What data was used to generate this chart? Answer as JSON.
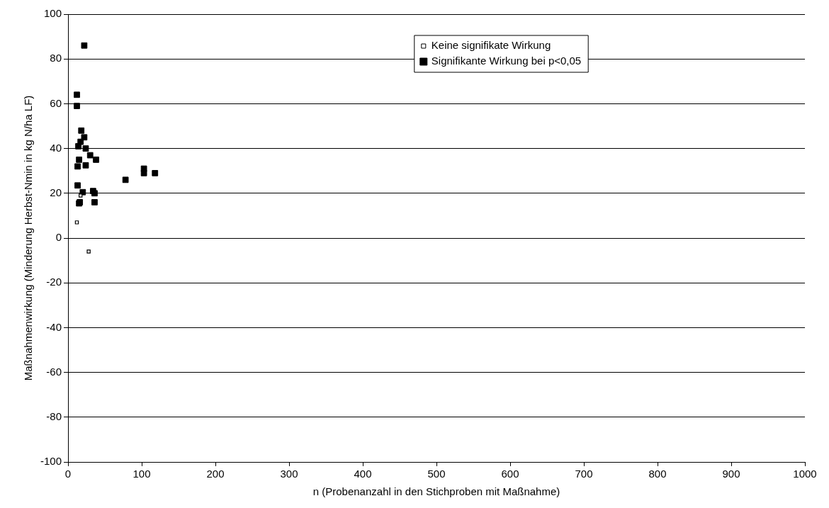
{
  "chart_data": {
    "type": "scatter",
    "xlabel": "n (Probenanzahl in den Stichproben mit Maßnahme)",
    "ylabel": "Maßnahmenwirkung (Minderung Herbst-Nmin in kg N/ha LF)",
    "xlim": [
      0,
      1000
    ],
    "xticks": [
      0,
      100,
      200,
      300,
      400,
      500,
      600,
      700,
      800,
      900,
      1000
    ],
    "ylim": [
      -100,
      100
    ],
    "yticks": [
      -100,
      -80,
      -60,
      -40,
      -20,
      0,
      20,
      40,
      60,
      80,
      100
    ],
    "grid": "y",
    "legend": "top right",
    "marker": "square",
    "series": [
      {
        "name": "Keine signifikate Wirkung",
        "color": "#000000",
        "x": [
          12,
          28,
          17
        ],
        "values": [
          7,
          -6,
          19
        ]
      },
      {
        "name": "Signifikante Wirkung bei p<0,05",
        "color": "#000000",
        "x": [
          12,
          12,
          22,
          18,
          22,
          17,
          14,
          24,
          15,
          38,
          30,
          13,
          24,
          13,
          78,
          103,
          103,
          118,
          20,
          34,
          36,
          36,
          16,
          15
        ],
        "values": [
          64,
          59,
          86,
          48,
          45,
          43,
          41,
          40,
          35,
          35,
          37,
          32,
          32.5,
          23.5,
          26,
          31,
          29,
          29,
          20.5,
          21,
          20,
          16,
          16,
          15.5
        ]
      }
    ]
  }
}
